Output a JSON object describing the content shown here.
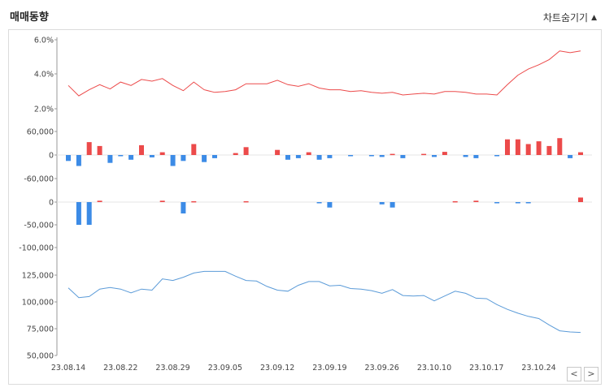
{
  "header": {
    "title": "매매동향",
    "toggle_label": "차트숨기기",
    "toggle_icon": "triangle-up-icon"
  },
  "pager": {
    "prev_icon": "chevron-left-icon",
    "next_icon": "chevron-right-icon"
  },
  "chart_data": [
    {
      "type": "line",
      "name": "rate-panel",
      "color": "#ec4a4a",
      "y_ticks": [
        "6.0%",
        "4.0%",
        "2.0%"
      ],
      "ylim": [
        1.9,
        6.1
      ],
      "values": [
        3.35,
        2.75,
        3.1,
        3.4,
        3.15,
        3.55,
        3.35,
        3.7,
        3.6,
        3.75,
        3.35,
        3.05,
        3.55,
        3.1,
        2.95,
        3.0,
        3.1,
        3.45,
        3.45,
        3.45,
        3.65,
        3.4,
        3.3,
        3.45,
        3.2,
        3.1,
        3.1,
        3.0,
        3.05,
        2.95,
        2.9,
        2.95,
        2.8,
        2.85,
        2.9,
        2.85,
        3.0,
        3.0,
        2.95,
        2.85,
        2.85,
        2.8,
        3.4,
        3.95,
        4.3,
        4.55,
        4.85,
        5.35,
        5.25,
        5.35
      ]
    },
    {
      "type": "bar",
      "name": "net-buy-panel-1",
      "pos_color": "#ec4a4a",
      "neg_color": "#3c8be6",
      "y_ticks": [
        "60,000",
        "0",
        "-60,000"
      ],
      "ylim": [
        -65000,
        65000
      ],
      "values": [
        -15000,
        -28000,
        33000,
        23000,
        -20000,
        -3000,
        -12000,
        25000,
        -6000,
        7000,
        -28000,
        -15000,
        28000,
        -18000,
        -8000,
        0,
        5000,
        20000,
        0,
        0,
        13000,
        -12000,
        -8000,
        7000,
        -12000,
        -8000,
        0,
        -2000,
        0,
        -2000,
        -5000,
        3000,
        -8000,
        0,
        3000,
        -5000,
        8000,
        0,
        -5000,
        -8000,
        0,
        -3000,
        40000,
        40000,
        28000,
        35000,
        23000,
        43000,
        -8000,
        7000
      ]
    },
    {
      "type": "bar",
      "name": "net-buy-panel-2",
      "pos_color": "#ec4a4a",
      "neg_color": "#3c8be6",
      "y_ticks": [
        "0",
        "-50,000",
        "-100,000"
      ],
      "ylim": [
        -110000,
        12000
      ],
      "values": [
        0,
        -50000,
        -50000,
        3000,
        0,
        0,
        0,
        0,
        0,
        3000,
        0,
        -25000,
        2000,
        0,
        0,
        0,
        0,
        2000,
        0,
        0,
        0,
        0,
        0,
        0,
        -2000,
        -12000,
        0,
        0,
        0,
        0,
        -5000,
        -12000,
        0,
        0,
        0,
        0,
        0,
        2000,
        0,
        3000,
        0,
        -2000,
        0,
        -2000,
        -2000,
        0,
        0,
        0,
        0,
        10000
      ]
    },
    {
      "type": "line",
      "name": "volume-panel",
      "color": "#5b9bd8",
      "y_ticks": [
        "125,000",
        "100,000",
        "75,000",
        "50,000"
      ],
      "ylim": [
        50000,
        143000
      ],
      "values": [
        113000,
        104000,
        105000,
        112000,
        113500,
        112000,
        108500,
        112000,
        111000,
        121500,
        120000,
        123000,
        127000,
        128500,
        128500,
        128500,
        124000,
        120000,
        119500,
        114500,
        111000,
        110000,
        115500,
        119000,
        119000,
        115000,
        115500,
        112500,
        112000,
        110500,
        108000,
        111500,
        106000,
        105500,
        106000,
        101000,
        105500,
        110000,
        108000,
        103500,
        103000,
        97500,
        93000,
        89500,
        86500,
        84500,
        78500,
        73000,
        72000,
        71500
      ],
      "x_labels": [
        "23.08.14",
        "23.08.22",
        "23.08.29",
        "23.09.05",
        "23.09.12",
        "23.09.19",
        "23.09.26",
        "23.10.10",
        "23.10.17",
        "23.10.24"
      ],
      "x_label_index": [
        0,
        5,
        10,
        15,
        20,
        25,
        30,
        35,
        40,
        45
      ]
    }
  ]
}
